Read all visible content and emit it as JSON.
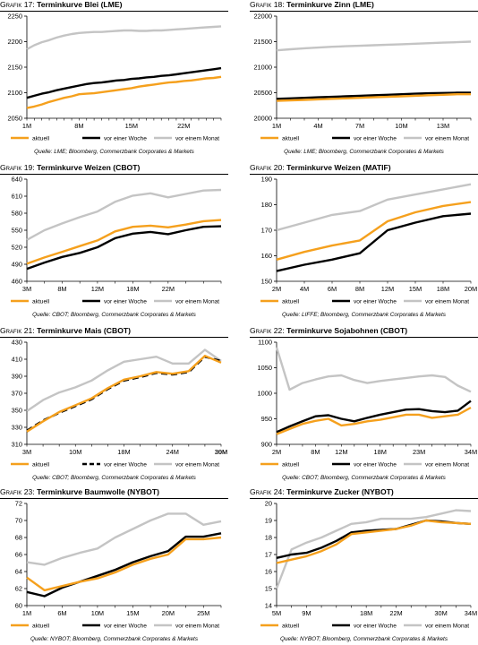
{
  "legend_labels": [
    "aktuell",
    "vor einer Woche",
    "vor einem Monat"
  ],
  "colors": {
    "aktuell": "#F5A01D",
    "week": "#000000",
    "month": "#C4C4C4"
  },
  "chart_data": [
    {
      "type": "line",
      "title_prefix": "Grafik 17:",
      "title": "Terminkurve Blei (LME)",
      "source": "Quelle: LME; Bloomberg, Commerzbank Corporates & Markets",
      "x": [
        "1M",
        "2M",
        "3M",
        "4M",
        "5M",
        "6M",
        "7M",
        "8M",
        "9M",
        "10M",
        "11M",
        "12M",
        "13M",
        "14M",
        "15M",
        "16M",
        "17M",
        "18M",
        "19M",
        "20M",
        "21M",
        "22M",
        "23M",
        "24M",
        "25M",
        "26M",
        "27M"
      ],
      "xticks": [
        "1M",
        "8M",
        "15M",
        "22M"
      ],
      "ylim": [
        2050,
        2250
      ],
      "yticks": [
        2050,
        2100,
        2150,
        2200,
        2250
      ],
      "series": [
        {
          "name": "aktuell",
          "style": "solid",
          "values": [
            2070,
            2073,
            2077,
            2082,
            2086,
            2090,
            2093,
            2097,
            2098,
            2099,
            2101,
            2103,
            2105,
            2107,
            2109,
            2112,
            2114,
            2116,
            2118,
            2120,
            2121,
            2123,
            2124,
            2126,
            2128,
            2129,
            2131
          ]
        },
        {
          "name": "vor einer Woche",
          "style": "solid",
          "values": [
            2090,
            2094,
            2098,
            2101,
            2105,
            2108,
            2111,
            2114,
            2117,
            2119,
            2120,
            2122,
            2124,
            2125,
            2127,
            2128,
            2130,
            2131,
            2133,
            2134,
            2136,
            2138,
            2140,
            2142,
            2144,
            2146,
            2148
          ]
        },
        {
          "name": "vor einem Monat",
          "style": "solid",
          "values": [
            2185,
            2193,
            2199,
            2203,
            2208,
            2212,
            2215,
            2217,
            2218,
            2219,
            2219,
            2220,
            2221,
            2222,
            2222,
            2221,
            2221,
            2222,
            2222,
            2223,
            2224,
            2225,
            2226,
            2227,
            2228,
            2229,
            2230
          ]
        }
      ],
      "legend_position": "bottom"
    },
    {
      "type": "line",
      "title_prefix": "Grafik 18:",
      "title": "Terminkurve Zinn (LME)",
      "source": "Quelle: LME; Bloomberg, Commerzbank Corporates & Markets",
      "x": [
        "1M",
        "2M",
        "3M",
        "4M",
        "5M",
        "6M",
        "7M",
        "8M",
        "9M",
        "10M",
        "11M",
        "12M",
        "13M",
        "14M",
        "15M"
      ],
      "xticks": [
        "1M",
        "4M",
        "7M",
        "10M",
        "13M"
      ],
      "ylim": [
        20000,
        22000
      ],
      "yticks": [
        20000,
        20500,
        21000,
        21500,
        22000
      ],
      "series": [
        {
          "name": "aktuell",
          "style": "solid",
          "values": [
            20340,
            20350,
            20360,
            20370,
            20380,
            20390,
            20400,
            20410,
            20420,
            20430,
            20440,
            20450,
            20460,
            20470,
            20470
          ]
        },
        {
          "name": "vor einer Woche",
          "style": "solid",
          "values": [
            20380,
            20390,
            20400,
            20410,
            20420,
            20430,
            20440,
            20450,
            20460,
            20470,
            20480,
            20490,
            20495,
            20500,
            20500
          ]
        },
        {
          "name": "vor einem Monat",
          "style": "solid",
          "values": [
            21330,
            21350,
            21370,
            21385,
            21400,
            21410,
            21420,
            21430,
            21440,
            21450,
            21460,
            21470,
            21480,
            21490,
            21500
          ]
        }
      ],
      "legend_position": "bottom"
    },
    {
      "type": "line",
      "title_prefix": "Grafik 19:",
      "title": "Terminkurve Weizen (CBOT)",
      "source": "Quelle: CBOT; Bloomberg, Commerzbank Corporates & Markets",
      "x": [
        "3M",
        "5M",
        "8M",
        "10M",
        "12M",
        "15M",
        "18M",
        "20M",
        "22M",
        "24M",
        "26M",
        "28M"
      ],
      "xticks": [
        "3M",
        "8M",
        "12M",
        "18M",
        "22M"
      ],
      "ylim": [
        460,
        640
      ],
      "yticks": [
        460,
        490,
        520,
        550,
        580,
        610,
        640
      ],
      "series": [
        {
          "name": "aktuell",
          "style": "solid",
          "values": [
            491,
            502,
            512,
            522,
            532,
            548,
            556,
            558,
            555,
            560,
            566,
            568
          ]
        },
        {
          "name": "vor einer Woche",
          "style": "solid",
          "values": [
            482,
            493,
            503,
            510,
            520,
            536,
            544,
            547,
            543,
            550,
            556,
            557
          ]
        },
        {
          "name": "vor einem Monat",
          "style": "solid",
          "values": [
            533,
            550,
            562,
            573,
            583,
            600,
            611,
            615,
            608,
            614,
            620,
            621
          ]
        }
      ],
      "legend_position": "bottom"
    },
    {
      "type": "line",
      "title_prefix": "Grafik 20:",
      "title": "Terminkurve Weizen (MATIF)",
      "source": "Quelle: LIFFE; Bloomberg, Commerzbank Corporates & Markets",
      "x": [
        "2M",
        "4M",
        "6M",
        "8M",
        "12M",
        "15M",
        "18M",
        "20M"
      ],
      "xticks": [
        "2M",
        "4M",
        "6M",
        "8M",
        "12M",
        "15M",
        "18M",
        "20M"
      ],
      "ylim": [
        150,
        190
      ],
      "yticks": [
        150,
        160,
        170,
        180,
        190
      ],
      "series": [
        {
          "name": "aktuell",
          "style": "solid",
          "values": [
            158.5,
            161.5,
            164,
            166,
            173.5,
            177,
            179.5,
            181
          ]
        },
        {
          "name": "vor einer Woche",
          "style": "solid",
          "values": [
            154,
            156.5,
            158.5,
            161,
            170,
            173,
            175.5,
            176.5
          ]
        },
        {
          "name": "vor einem Monat",
          "style": "solid",
          "values": [
            170,
            173,
            176,
            177.5,
            182,
            184,
            186,
            188
          ]
        }
      ],
      "legend_position": "bottom"
    },
    {
      "type": "line",
      "title_prefix": "Grafik 21:",
      "title": "Terminkurve Mais (CBOT)",
      "source": "Quelle: CBOT; Bloomberg, Commerzbank Corporates & Markets",
      "x": [
        "3M",
        "5M",
        "8M",
        "10M",
        "12M",
        "15M",
        "18M",
        "20M",
        "22M",
        "24M",
        "26M",
        "28M",
        "30M"
      ],
      "xticks": [
        "3M",
        "10M",
        "18M",
        "24M",
        "30M",
        "39M"
      ],
      "ylim": [
        310,
        430
      ],
      "yticks": [
        310,
        330,
        350,
        370,
        390,
        410,
        430
      ],
      "series": [
        {
          "name": "aktuell",
          "style": "solid",
          "values": [
            325,
            337,
            348,
            356,
            364,
            376,
            386,
            390,
            395,
            393,
            396,
            414,
            406
          ]
        },
        {
          "name": "vor einer Woche",
          "style": "dashed",
          "values": [
            326,
            338,
            347,
            355,
            363,
            375,
            385,
            389,
            394,
            392,
            395,
            413,
            408
          ]
        },
        {
          "name": "vor einem Monat",
          "style": "solid",
          "values": [
            349,
            362,
            371,
            377,
            385,
            397,
            407,
            410,
            413,
            405,
            405,
            421,
            408
          ]
        }
      ],
      "legend_position": "bottom"
    },
    {
      "type": "line",
      "title_prefix": "Grafik 22:",
      "title": "Terminkurve Sojabohnen (CBOT)",
      "source": "Quelle: CBOT; Bloomberg, Commerzbank Corporates & Markets",
      "x": [
        "2M",
        "4M",
        "6M",
        "8M",
        "10M",
        "12M",
        "14M",
        "16M",
        "18M",
        "20M",
        "22M",
        "23M",
        "26M",
        "29M",
        "31M",
        "34M"
      ],
      "xticks": [
        "2M",
        "8M",
        "12M",
        "18M",
        "23M",
        "34M"
      ],
      "ylim": [
        900,
        1100
      ],
      "yticks": [
        900,
        950,
        1000,
        1050,
        1100
      ],
      "series": [
        {
          "name": "aktuell",
          "style": "solid",
          "values": [
            920,
            930,
            940,
            946,
            950,
            937,
            940,
            945,
            948,
            953,
            958,
            958,
            952,
            955,
            958,
            972
          ]
        },
        {
          "name": "vor einer Woche",
          "style": "solid",
          "values": [
            924,
            935,
            945,
            955,
            957,
            950,
            945,
            952,
            958,
            963,
            968,
            969,
            965,
            963,
            966,
            985
          ]
        },
        {
          "name": "vor einem Monat",
          "style": "solid",
          "values": [
            1090,
            1007,
            1020,
            1027,
            1033,
            1035,
            1026,
            1020,
            1024,
            1027,
            1030,
            1033,
            1035,
            1032,
            1015,
            1003
          ]
        }
      ],
      "legend_position": "bottom"
    },
    {
      "type": "line",
      "title_prefix": "Grafik 23:",
      "title": "Terminkurve Baumwolle (NYBOT)",
      "source": "Quelle: NYBOT; Bloomberg, Commerzbank Corporates & Markets",
      "x": [
        "1M",
        "3M",
        "6M",
        "8M",
        "10M",
        "12M",
        "15M",
        "18M",
        "20M",
        "22M",
        "25M",
        "27M"
      ],
      "xticks": [
        "1M",
        "6M",
        "10M",
        "15M",
        "20M",
        "25M"
      ],
      "ylim": [
        60,
        72
      ],
      "yticks": [
        60,
        62,
        64,
        66,
        68,
        70,
        72
      ],
      "series": [
        {
          "name": "aktuell",
          "style": "solid",
          "values": [
            63.3,
            61.8,
            62.3,
            62.8,
            63.2,
            63.9,
            64.8,
            65.5,
            66,
            67.8,
            67.8,
            68
          ]
        },
        {
          "name": "vor einer Woche",
          "style": "solid",
          "values": [
            61.6,
            61.1,
            62.1,
            62.8,
            63.5,
            64.2,
            65.1,
            65.8,
            66.4,
            68.1,
            68.1,
            68.5
          ]
        },
        {
          "name": "vor einem Monat",
          "style": "solid",
          "values": [
            65.1,
            64.8,
            65.6,
            66.2,
            66.7,
            68,
            69,
            70,
            70.8,
            70.8,
            69.5,
            69.9
          ]
        }
      ],
      "legend_position": "bottom"
    },
    {
      "type": "line",
      "title_prefix": "Grafik 24:",
      "title": "Terminkurve Zucker (NYBOT)",
      "source": "Quelle: NYBOT; Bloomberg, Commerzbank Corporates & Markets",
      "x": [
        "5M",
        "7M",
        "9M",
        "11M",
        "14M",
        "16M",
        "18M",
        "20M",
        "22M",
        "24M",
        "27M",
        "30M",
        "32M",
        "34M"
      ],
      "xticks": [
        "5M",
        "9M",
        "18M",
        "22M",
        "30M",
        "34M"
      ],
      "ylim": [
        14,
        20
      ],
      "yticks": [
        14,
        15,
        16,
        17,
        18,
        19,
        20
      ],
      "series": [
        {
          "name": "aktuell",
          "style": "solid",
          "values": [
            16.5,
            16.7,
            16.9,
            17.2,
            17.6,
            18.2,
            18.3,
            18.4,
            18.5,
            18.7,
            19.0,
            18.9,
            18.85,
            18.8
          ]
        },
        {
          "name": "vor einer Woche",
          "style": "solid",
          "values": [
            16.8,
            17.0,
            17.1,
            17.4,
            17.8,
            18.3,
            18.4,
            18.45,
            18.5,
            18.75,
            19.0,
            18.95,
            18.85,
            18.8
          ]
        },
        {
          "name": "vor einem Monat",
          "style": "solid",
          "values": [
            15.0,
            17.3,
            17.7,
            18.0,
            18.4,
            18.8,
            18.9,
            19.1,
            19.1,
            19.1,
            19.2,
            19.4,
            19.6,
            19.55
          ]
        }
      ],
      "legend_position": "bottom"
    }
  ]
}
